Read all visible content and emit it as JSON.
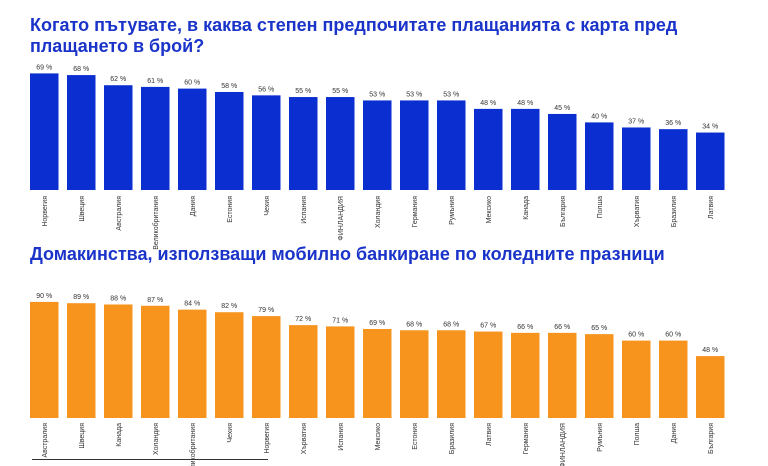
{
  "chart_data": [
    {
      "type": "bar",
      "title": "Когато пътувате, в каква степен предпочитате плащанията с карта пред плащането в брой?",
      "color": "#0a2ed0",
      "unit": "%",
      "categories": [
        "Норвегия",
        "Швеция",
        "Австралия",
        "Великобритания",
        "Дания",
        "Естония",
        "Чехия",
        "Испания",
        "ФИНЛАНДИЯ",
        "Холандия",
        "Германия",
        "Румъния",
        "Мексико",
        "Канада",
        "България",
        "Полша",
        "Хърватия",
        "Бразилия",
        "Латвия"
      ],
      "values": [
        69,
        68,
        62,
        61,
        60,
        58,
        56,
        55,
        55,
        53,
        53,
        53,
        48,
        48,
        45,
        40,
        37,
        36,
        34
      ],
      "value_labels": [
        "69 %",
        "68 %",
        "62 %",
        "61 %",
        "60 %",
        "58 %",
        "56 %",
        "55 %",
        "55 %",
        "53 %",
        "53 %",
        "53 %",
        "48 %",
        "48 %",
        "45 %",
        "40 %",
        "37 %",
        "36 %",
        "34 %"
      ],
      "ylim": [
        0,
        100
      ]
    },
    {
      "type": "bar",
      "title": "Домакинства, използващи мобилно банкиране по коледните празници",
      "color": "#f7941d",
      "unit": "%",
      "categories": [
        "Австралия",
        "Швеция",
        "Канада",
        "Холандия",
        "Великобритания",
        "Чехия",
        "Норвегия",
        "Хърватия",
        "Испания",
        "Мексико",
        "Естония",
        "Бразилия",
        "Латвия",
        "Германия",
        "ФИНЛАНДИЯ",
        "Румъния",
        "Полша",
        "Дания",
        "България"
      ],
      "values": [
        90,
        89,
        88,
        87,
        84,
        82,
        79,
        72,
        71,
        69,
        68,
        68,
        67,
        66,
        66,
        65,
        60,
        60,
        48
      ],
      "value_labels": [
        "90 %",
        "89 %",
        "88 %",
        "87 %",
        "84 %",
        "82 %",
        "79 %",
        "72 %",
        "71 %",
        "69 %",
        "68 %",
        "68 %",
        "67 %",
        "66 %",
        "66 %",
        "65 %",
        "60 %",
        "60 %",
        "48 %"
      ],
      "ylim": [
        0,
        100
      ]
    }
  ]
}
